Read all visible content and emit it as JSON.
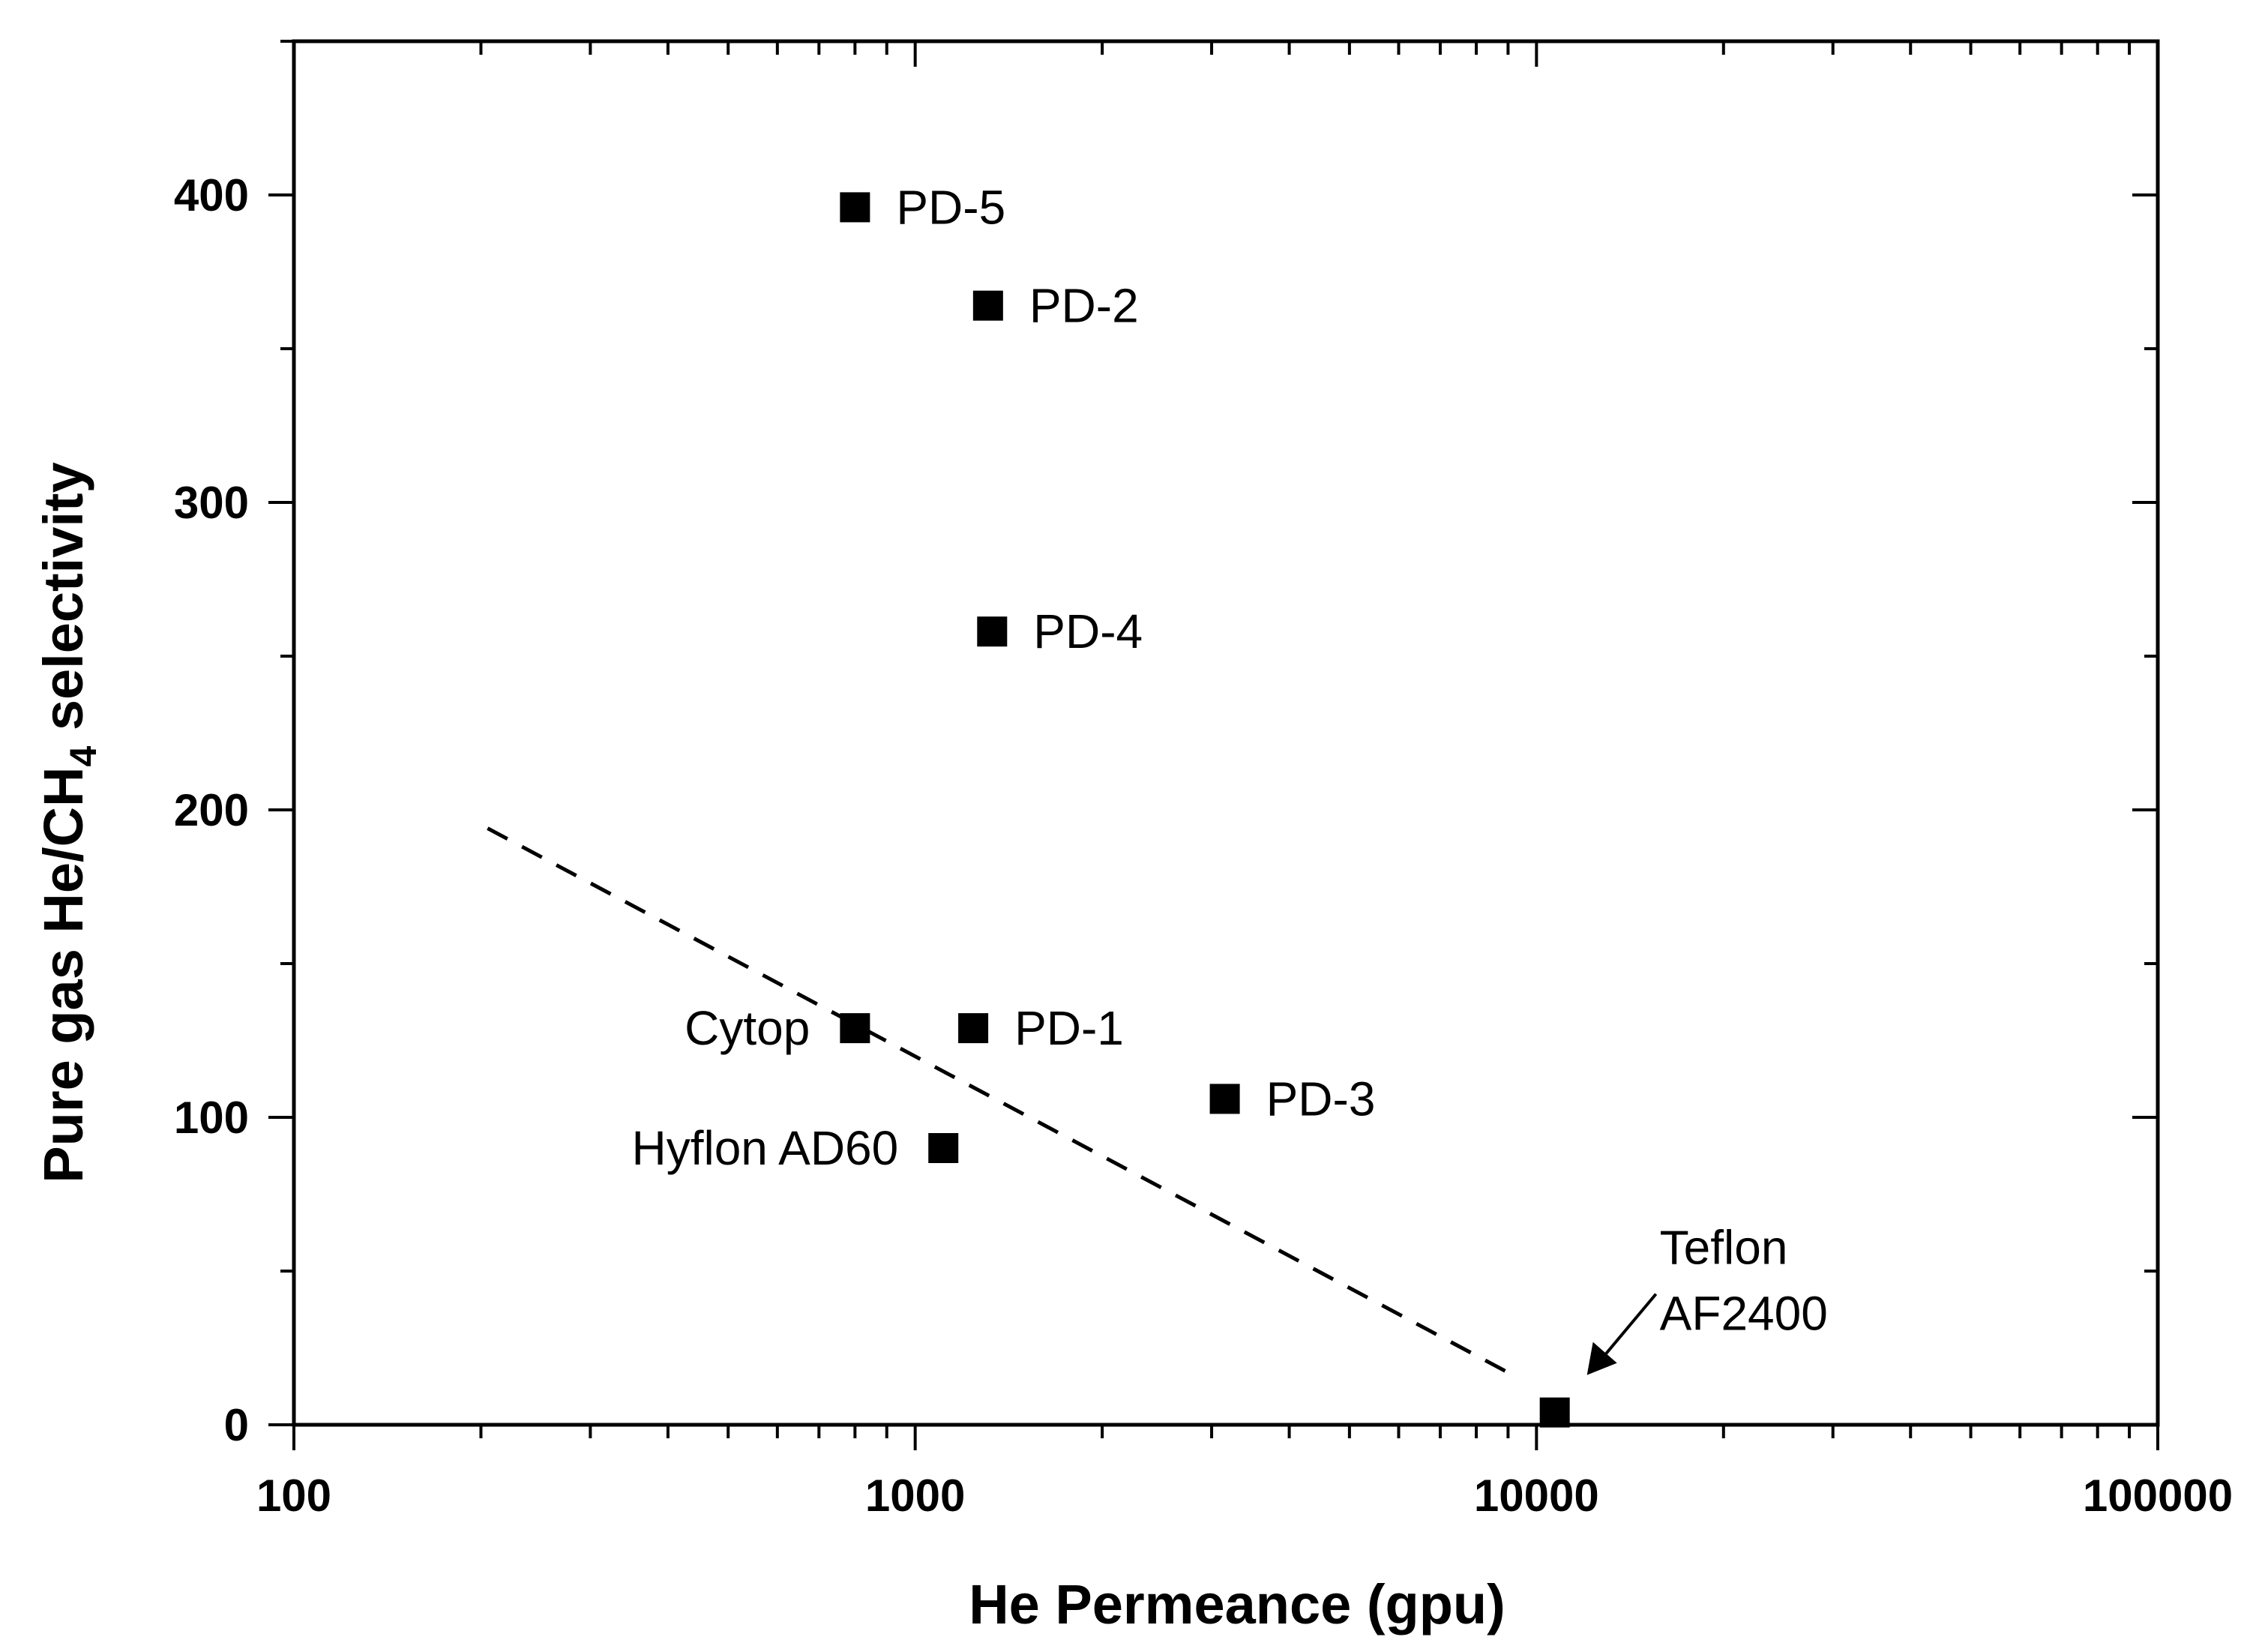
{
  "chart_data": {
    "type": "scatter",
    "title": "",
    "xlabel": "He Permeance (gpu)",
    "ylabel_main": "Pure gas He/CH",
    "ylabel_sub": "4",
    "ylabel_tail": " selectivity",
    "xscale": "log",
    "xlim": [
      100,
      100000
    ],
    "ylim": [
      0,
      450
    ],
    "xticks": [
      100,
      1000,
      10000,
      100000
    ],
    "xtick_labels": [
      "100",
      "1000",
      "10000",
      "100000"
    ],
    "yticks": [
      0,
      100,
      200,
      300,
      400
    ],
    "ytick_labels": [
      "0",
      "100",
      "200",
      "300",
      "400"
    ],
    "grid": false,
    "points": [
      {
        "label": "PD-5",
        "x": 800,
        "y": 396,
        "label_side": "right"
      },
      {
        "label": "PD-2",
        "x": 1310,
        "y": 364,
        "label_side": "right"
      },
      {
        "label": "PD-4",
        "x": 1330,
        "y": 258,
        "label_side": "right"
      },
      {
        "label": "Cytop",
        "x": 800,
        "y": 129,
        "label_side": "left"
      },
      {
        "label": "PD-1",
        "x": 1240,
        "y": 129,
        "label_side": "right"
      },
      {
        "label": "PD-3",
        "x": 3150,
        "y": 106,
        "label_side": "right"
      },
      {
        "label": "Hyflon AD60",
        "x": 1110,
        "y": 90,
        "label_side": "left"
      },
      {
        "label_lines": [
          "Teflon",
          "AF2400"
        ],
        "x": 10700,
        "y": 4,
        "label_side": "arrow"
      }
    ],
    "trend_line": {
      "style": "dashed",
      "x": [
        205,
        9000
      ],
      "y": [
        194,
        17
      ]
    }
  }
}
